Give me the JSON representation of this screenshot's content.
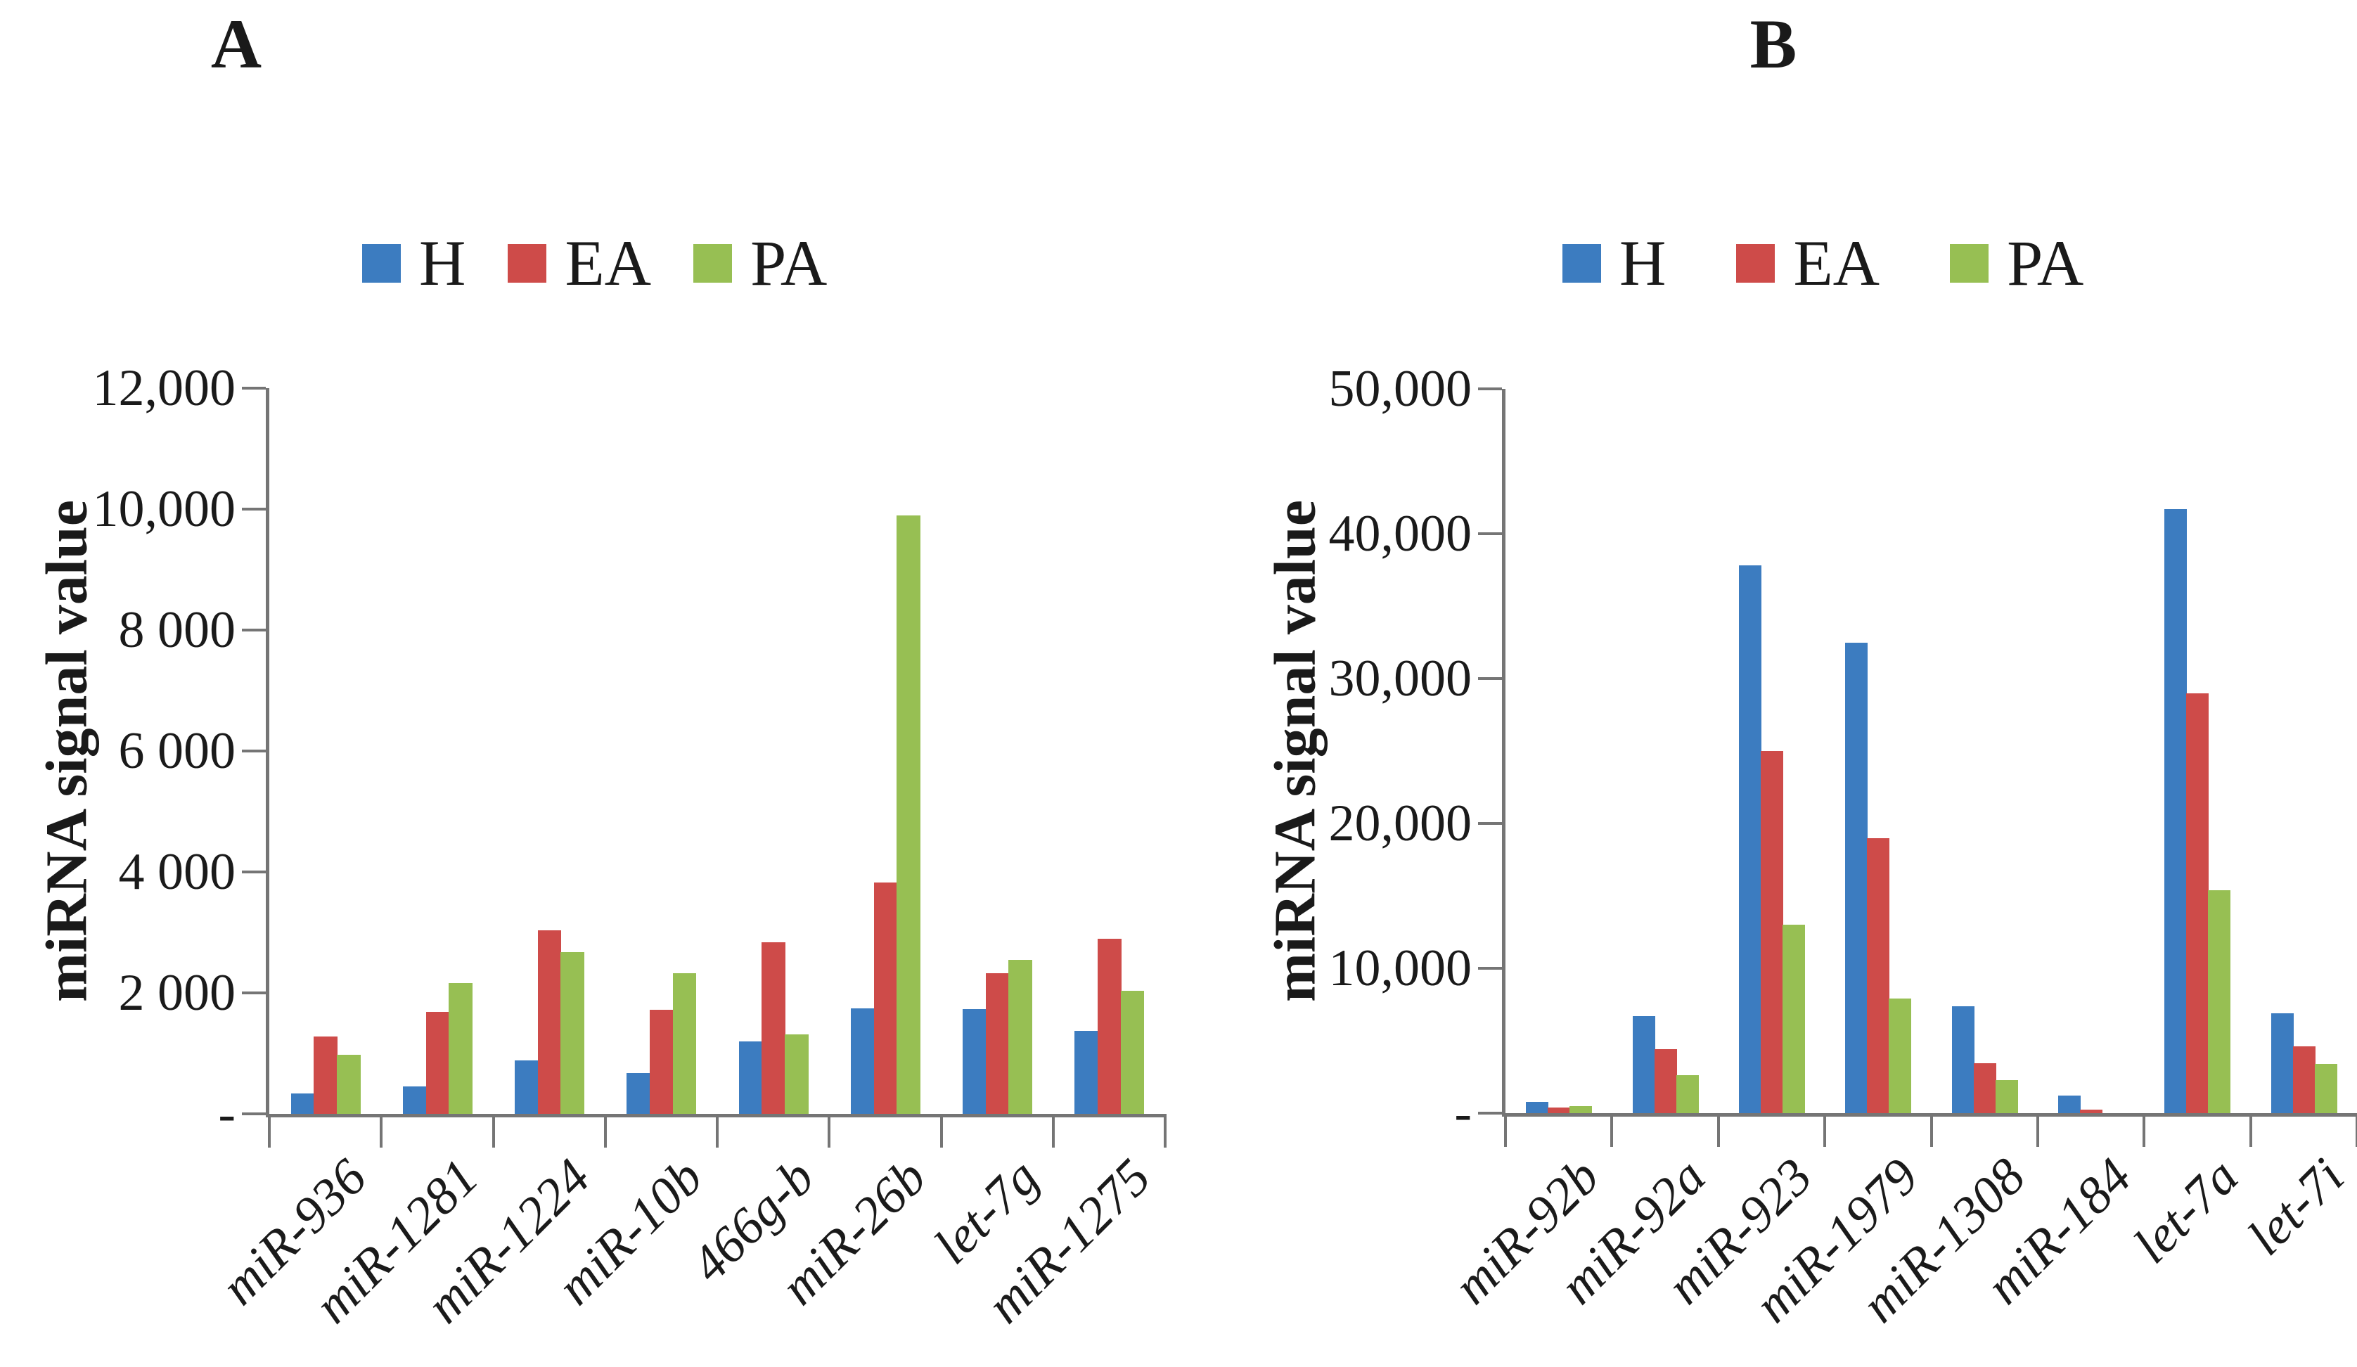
{
  "figure": {
    "background": "#ffffff",
    "panels": [
      {
        "label": "A"
      },
      {
        "label": "B"
      }
    ]
  },
  "colors": {
    "H": "#3c7cc0",
    "EA": "#ce4b49",
    "PA": "#97bf53",
    "axis": "#757575",
    "text": "#1a1a1a"
  },
  "chart_data": [
    {
      "type": "bar",
      "panel": "A",
      "title": "",
      "ylabel": "miRNA signal value",
      "xlabel": "",
      "ylim": [
        0,
        12000
      ],
      "grid": false,
      "legend_position": "top",
      "legend": [
        "H",
        "EA",
        "PA"
      ],
      "yticks": [
        {
          "value": 12000,
          "label": "12,000"
        },
        {
          "value": 10000,
          "label": "10,000"
        },
        {
          "value": 8000,
          "label": "8 000"
        },
        {
          "value": 6000,
          "label": "6 000"
        },
        {
          "value": 4000,
          "label": "4 000"
        },
        {
          "value": 2000,
          "label": "2 000"
        },
        {
          "value": 0,
          "label": "-"
        }
      ],
      "categories": [
        "miR-936",
        "miR-1281",
        "miR-1224",
        "miR-10b",
        "466g-b",
        "miR-26b",
        "let-7g",
        "miR-1275"
      ],
      "series": [
        {
          "name": "H",
          "values": [
            340,
            450,
            880,
            670,
            1200,
            1750,
            1730,
            1370
          ]
        },
        {
          "name": "EA",
          "values": [
            1280,
            1690,
            3030,
            1720,
            2840,
            3820,
            2320,
            2900
          ]
        },
        {
          "name": "PA",
          "values": [
            975,
            2160,
            2680,
            2320,
            1310,
            9900,
            2550,
            2030
          ]
        }
      ]
    },
    {
      "type": "bar",
      "panel": "B",
      "title": "",
      "ylabel": "miRNA signal value",
      "xlabel": "",
      "ylim": [
        0,
        50000
      ],
      "grid": false,
      "legend_position": "top",
      "legend": [
        "H",
        "EA",
        "PA"
      ],
      "yticks": [
        {
          "value": 50000,
          "label": "50,000"
        },
        {
          "value": 40000,
          "label": "40,000"
        },
        {
          "value": 30000,
          "label": "30,000"
        },
        {
          "value": 20000,
          "label": "20,000"
        },
        {
          "value": 10000,
          "label": "10,000"
        },
        {
          "value": 0,
          "label": "-"
        }
      ],
      "categories": [
        "miR-92b",
        "miR-92a",
        "miR-923",
        "miR-1979",
        "miR-1308",
        "miR-184",
        "let-7a",
        "let-7i"
      ],
      "series": [
        {
          "name": "H",
          "values": [
            800,
            6700,
            37800,
            32500,
            7400,
            1200,
            41700,
            6900
          ]
        },
        {
          "name": "EA",
          "values": [
            400,
            4400,
            25000,
            19000,
            3450,
            220,
            29000,
            4600
          ]
        },
        {
          "name": "PA",
          "values": [
            500,
            2600,
            13000,
            7900,
            2300,
            0,
            15400,
            3400
          ]
        }
      ]
    }
  ]
}
